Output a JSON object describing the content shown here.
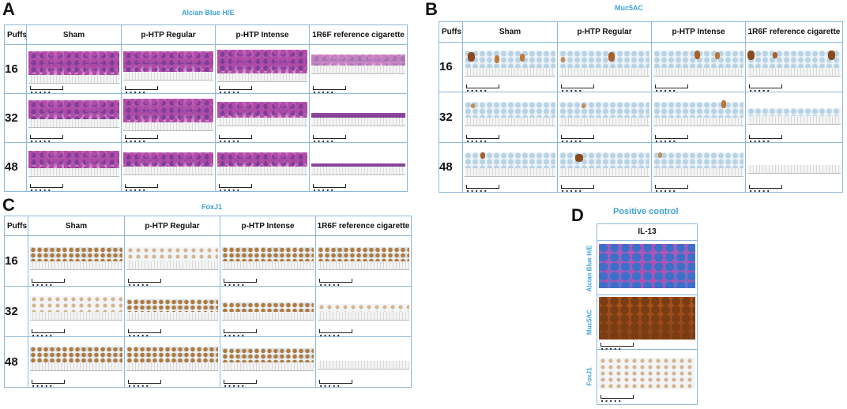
{
  "panels": {
    "A": {
      "letter": "A",
      "stain_title": "Alcian Blue H/E"
    },
    "B": {
      "letter": "B",
      "stain_title": "Muc5AC"
    },
    "C": {
      "letter": "C",
      "stain_title": "FoxJ1"
    },
    "D": {
      "letter": "D",
      "title": "Positive control",
      "column_header": "IL-13",
      "row_labels": [
        "Alcian Blue H/E",
        "Muc5AC",
        "FoxJ1"
      ]
    }
  },
  "grid": {
    "puffs_header": "Puffs",
    "columns": [
      "Sham",
      "p-HTP Regular",
      "p-HTP Intense",
      "1R6F reference cigarette"
    ],
    "rows": [
      "16",
      "32",
      "48"
    ]
  },
  "scale_bar_text": "■ ■ ■ ■ ■",
  "colors": {
    "accent": "#3fa3d8",
    "grid_line": "#8eb8dc"
  }
}
